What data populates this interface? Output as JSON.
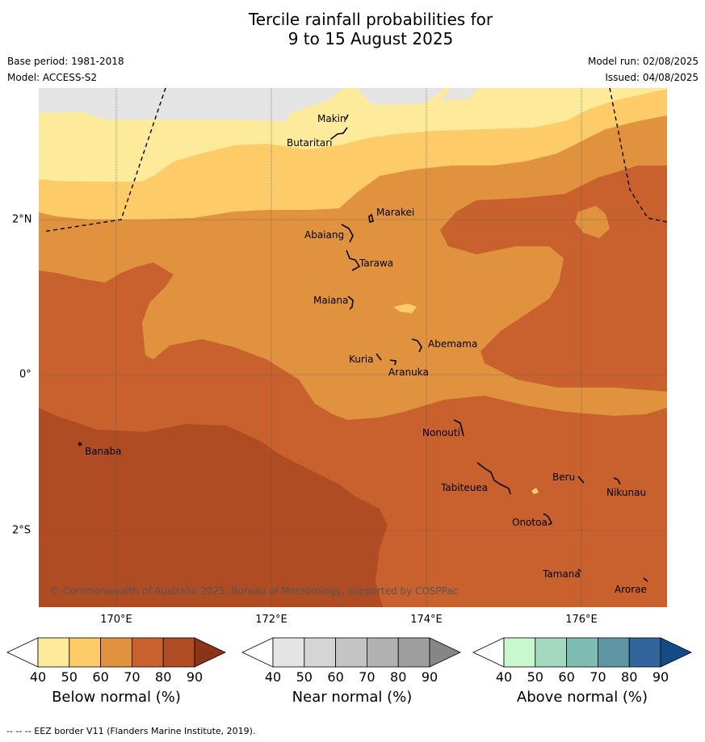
{
  "title_line1": "Tercile rainfall probabilities for",
  "title_line2": "9 to 15 August 2025",
  "meta": {
    "base_period": "Base period: 1981-2018",
    "model": "Model: ACCESS-S2",
    "model_run": "Model run: 02/08/2025",
    "issued": "Issued: 04/08/2025"
  },
  "axes": {
    "x_ticks": [
      "170°E",
      "172°E",
      "174°E",
      "176°E"
    ],
    "y_ticks": [
      "2°N",
      "0°",
      "2°S"
    ]
  },
  "places": {
    "makin": "Makin",
    "butaritari": "Butaritari",
    "marakei": "Marakei",
    "abaiang": "Abaiang",
    "tarawa": "Tarawa",
    "maiana": "Maiana",
    "abemama": "Abemama",
    "kuria": "Kuria",
    "aranuka": "Aranuka",
    "nonouti": "Nonouti",
    "banaba": "Banaba",
    "beru": "Beru",
    "tabiteuea": "Tabiteuea",
    "nikunau": "Nikunau",
    "onotoa": "Onotoa",
    "tamana": "Tamana",
    "arorae": "Arorae"
  },
  "copyright": "© Commonwealth of Australia 2025, Bureau of Meteorology, supported by COSPPac",
  "colorbars": [
    {
      "label": "Below normal (%)",
      "ticks": [
        "40",
        "50",
        "60",
        "70",
        "80",
        "90"
      ],
      "colors": [
        "#fdeb9b",
        "#fdcb68",
        "#e0923f",
        "#c9612f",
        "#b04c24",
        "#8c3318"
      ]
    },
    {
      "label": "Near normal (%)",
      "ticks": [
        "40",
        "50",
        "60",
        "70",
        "80",
        "90"
      ],
      "colors": [
        "#e4e4e4",
        "#d5d5d5",
        "#c4c4c4",
        "#b1b1b1",
        "#9e9e9e",
        "#868686"
      ]
    },
    {
      "label": "Above normal (%)",
      "ticks": [
        "40",
        "50",
        "60",
        "70",
        "80",
        "90"
      ],
      "colors": [
        "#c9f7ce",
        "#a3d9be",
        "#7ebcb4",
        "#5e96a4",
        "#33659d",
        "#124c85"
      ]
    }
  ],
  "footnote": "--  --  -- EEZ border V11 (Flanders Marine Institute, 2019)."
}
